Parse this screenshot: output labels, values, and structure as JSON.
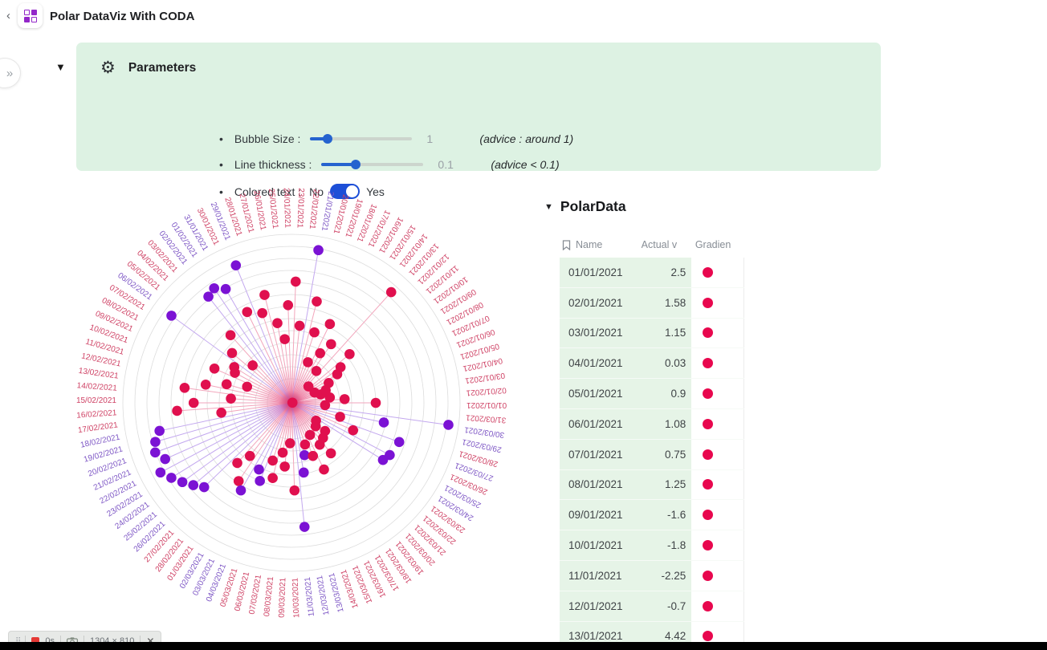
{
  "header": {
    "back_chevron": "‹",
    "title": "Polar DataViz With CODA"
  },
  "expand_button_glyph": "»",
  "collapse_triangle": "▼",
  "parameters": {
    "icon": "gear",
    "title": "Parameters",
    "bullet": "•",
    "rows": [
      {
        "label": "Bubble Size :",
        "value": "1",
        "advice": "(advice : around 1)",
        "slider_pct": 16
      },
      {
        "label": "Line thickness :",
        "value": "0.1",
        "advice": "(advice < 0.1)",
        "slider_pct": 33
      },
      {
        "label": "Colored text :",
        "off_label": "No",
        "on_label": "Yes",
        "state": "on"
      }
    ]
  },
  "chart_data": {
    "type": "polar-bubble",
    "description": "90 daily points 01/01/2021-31/03/2021 placed counterclockwise from east, radius = |value|, spokes from center, date labels rotated radially and colored by gradient",
    "angle_step_deg": 4,
    "rings": 14,
    "value_max": 5,
    "colors": {
      "bubble_crimson": "#e0104e",
      "bubble_purple": "#7b12d4",
      "line_crimson": "#f2a6bc",
      "line_purple": "#c3a8ef",
      "label_crimson": "#cf4265",
      "label_purple": "#7e57c5",
      "grid": "#dcdcdc",
      "center_fuzz": "#e8558c"
    },
    "points": [
      {
        "d": "01/01/2021",
        "v": 2.5,
        "c": "r"
      },
      {
        "d": "02/01/2021",
        "v": 1.58,
        "c": "r"
      },
      {
        "d": "03/01/2021",
        "v": 1.15,
        "c": "r"
      },
      {
        "d": "04/01/2021",
        "v": 0.03,
        "c": "r"
      },
      {
        "d": "05/01/2021",
        "v": 0.9,
        "c": "r"
      },
      {
        "d": "06/01/2021",
        "v": 1.08,
        "c": "r"
      },
      {
        "d": "07/01/2021",
        "v": 0.75,
        "c": "r"
      },
      {
        "d": "08/01/2021",
        "v": 1.25,
        "c": "r"
      },
      {
        "d": "09/01/2021",
        "v": -1.6,
        "c": "r"
      },
      {
        "d": "10/01/2021",
        "v": -1.8,
        "c": "r"
      },
      {
        "d": "11/01/2021",
        "v": -2.25,
        "c": "r"
      },
      {
        "d": "12/01/2021",
        "v": -0.7,
        "c": "r"
      },
      {
        "d": "13/01/2021",
        "v": 4.42,
        "c": "r"
      },
      {
        "d": "14/01/2021",
        "v": 1.2,
        "c": "r"
      },
      {
        "d": "15/01/2021",
        "v": 2.1,
        "c": "r"
      },
      {
        "d": "16/01/2021",
        "v": 1.7,
        "c": "r"
      },
      {
        "d": "17/01/2021",
        "v": 2.6,
        "c": "r"
      },
      {
        "d": "18/01/2021",
        "v": 1.3,
        "c": "r"
      },
      {
        "d": "19/01/2021",
        "v": 2.2,
        "c": "r"
      },
      {
        "d": "20/01/2021",
        "v": 3.1,
        "c": "r"
      },
      {
        "d": "21/01/2021",
        "v": 4.6,
        "c": "p"
      },
      {
        "d": "22/01/2021",
        "v": 2.3,
        "c": "r"
      },
      {
        "d": "23/01/2021",
        "v": 3.6,
        "c": "r"
      },
      {
        "d": "24/01/2021",
        "v": 2.9,
        "c": "r"
      },
      {
        "d": "25/01/2021",
        "v": 1.9,
        "c": "r"
      },
      {
        "d": "26/01/2021",
        "v": 2.4,
        "c": "r"
      },
      {
        "d": "27/01/2021",
        "v": 3.3,
        "c": "r"
      },
      {
        "d": "28/01/2021",
        "v": 2.8,
        "c": "r"
      },
      {
        "d": "29/01/2021",
        "v": 4.4,
        "c": "p"
      },
      {
        "d": "30/01/2021",
        "v": 3.0,
        "c": "r"
      },
      {
        "d": "31/01/2021",
        "v": 3.9,
        "c": "p"
      },
      {
        "d": "01/02/2021",
        "v": 4.1,
        "c": "p"
      },
      {
        "d": "02/02/2021",
        "v": 4.0,
        "c": "p"
      },
      {
        "d": "03/02/2021",
        "v": 2.7,
        "c": "r"
      },
      {
        "d": "04/02/2021",
        "v": 1.6,
        "c": "r"
      },
      {
        "d": "05/02/2021",
        "v": 2.3,
        "c": "r"
      },
      {
        "d": "06/02/2021",
        "v": 4.4,
        "c": "p"
      },
      {
        "d": "07/02/2021",
        "v": 2.0,
        "c": "r"
      },
      {
        "d": "08/02/2021",
        "v": 1.9,
        "c": "r"
      },
      {
        "d": "09/02/2021",
        "v": 2.5,
        "c": "r"
      },
      {
        "d": "10/02/2021",
        "v": 1.4,
        "c": "r"
      },
      {
        "d": "11/02/2021",
        "v": 2.0,
        "c": "r"
      },
      {
        "d": "12/02/2021",
        "v": 2.6,
        "c": "r"
      },
      {
        "d": "13/02/2021",
        "v": 3.2,
        "c": "r"
      },
      {
        "d": "14/02/2021",
        "v": 1.8,
        "c": "r"
      },
      {
        "d": "15/02/2021",
        "v": 2.9,
        "c": "r"
      },
      {
        "d": "16/02/2021",
        "v": 3.4,
        "c": "r"
      },
      {
        "d": "17/02/2021",
        "v": 2.1,
        "c": "r"
      },
      {
        "d": "18/02/2021",
        "v": 4.0,
        "c": "p"
      },
      {
        "d": "19/02/2021",
        "v": 4.2,
        "c": "p"
      },
      {
        "d": "20/02/2021",
        "v": 4.3,
        "c": "p"
      },
      {
        "d": "21/02/2021",
        "v": 4.1,
        "c": "p"
      },
      {
        "d": "22/02/2021",
        "v": 4.4,
        "c": "p"
      },
      {
        "d": "23/02/2021",
        "v": 4.2,
        "c": "p"
      },
      {
        "d": "24/02/2021",
        "v": 4.0,
        "c": "p"
      },
      {
        "d": "25/02/2021",
        "v": 3.8,
        "c": "p"
      },
      {
        "d": "26/02/2021",
        "v": 3.6,
        "c": "p"
      },
      {
        "d": "27/02/2021",
        "v": 2.4,
        "c": "r"
      },
      {
        "d": "28/02/2021",
        "v": 2.0,
        "c": "r"
      },
      {
        "d": "01/03/2021",
        "v": 2.8,
        "c": "r"
      },
      {
        "d": "02/03/2021",
        "v": 3.0,
        "c": "p"
      },
      {
        "d": "03/03/2021",
        "v": 2.2,
        "c": "p"
      },
      {
        "d": "04/03/2021",
        "v": 2.5,
        "c": "p"
      },
      {
        "d": "05/03/2021",
        "v": 1.8,
        "c": "r"
      },
      {
        "d": "06/03/2021",
        "v": 2.3,
        "c": "r"
      },
      {
        "d": "07/03/2021",
        "v": 1.5,
        "c": "r"
      },
      {
        "d": "08/03/2021",
        "v": 1.9,
        "c": "r"
      },
      {
        "d": "09/03/2021",
        "v": 1.2,
        "c": "r"
      },
      {
        "d": "10/03/2021",
        "v": 2.6,
        "c": "r"
      },
      {
        "d": "11/03/2021",
        "v": 3.7,
        "c": "p"
      },
      {
        "d": "12/03/2021",
        "v": 2.1,
        "c": "p"
      },
      {
        "d": "13/03/2021",
        "v": 1.6,
        "c": "p"
      },
      {
        "d": "14/03/2021",
        "v": 1.3,
        "c": "r"
      },
      {
        "d": "15/03/2021",
        "v": 1.7,
        "c": "r"
      },
      {
        "d": "16/03/2021",
        "v": 2.2,
        "c": "r"
      },
      {
        "d": "17/03/2021",
        "v": 1.1,
        "c": "r"
      },
      {
        "d": "18/03/2021",
        "v": 1.5,
        "c": "r"
      },
      {
        "d": "19/03/2021",
        "v": 1.9,
        "c": "r"
      },
      {
        "d": "20/03/2021",
        "v": 1.4,
        "c": "r"
      },
      {
        "d": "21/03/2021",
        "v": 1.0,
        "c": "r"
      },
      {
        "d": "22/03/2021",
        "v": 1.3,
        "c": "r"
      },
      {
        "d": "23/03/2021",
        "v": 0.9,
        "c": "r"
      },
      {
        "d": "24/03/2021",
        "v": 3.2,
        "c": "p"
      },
      {
        "d": "25/03/2021",
        "v": 3.3,
        "c": "p"
      },
      {
        "d": "26/03/2021",
        "v": 2.0,
        "c": "r"
      },
      {
        "d": "27/03/2021",
        "v": 3.4,
        "c": "p"
      },
      {
        "d": "28/03/2021",
        "v": 1.5,
        "c": "r"
      },
      {
        "d": "29/03/2021",
        "v": 2.8,
        "c": "p"
      },
      {
        "d": "30/03/2021",
        "v": 4.7,
        "c": "p"
      },
      {
        "d": "31/03/2021",
        "v": 1.0,
        "c": "r"
      }
    ]
  },
  "table": {
    "collapse_triangle": "▼",
    "title": "PolarData",
    "columns": {
      "name": "Name",
      "actual_value": "Actual v",
      "gradient": "Gradien"
    },
    "dot_color": "#e8074e",
    "rows": [
      {
        "name": "01/01/2021",
        "value": "2.5"
      },
      {
        "name": "02/01/2021",
        "value": "1.58"
      },
      {
        "name": "03/01/2021",
        "value": "1.15"
      },
      {
        "name": "04/01/2021",
        "value": "0.03"
      },
      {
        "name": "05/01/2021",
        "value": "0.9"
      },
      {
        "name": "06/01/2021",
        "value": "1.08"
      },
      {
        "name": "07/01/2021",
        "value": "0.75"
      },
      {
        "name": "08/01/2021",
        "value": "1.25"
      },
      {
        "name": "09/01/2021",
        "value": "-1.6"
      },
      {
        "name": "10/01/2021",
        "value": "-1.8"
      },
      {
        "name": "11/01/2021",
        "value": "-2.25"
      },
      {
        "name": "12/01/2021",
        "value": "-0.7"
      },
      {
        "name": "13/01/2021",
        "value": "4.42"
      }
    ]
  },
  "recorder": {
    "time": "0s",
    "dimensions": "1304 × 810",
    "close": "✕"
  }
}
